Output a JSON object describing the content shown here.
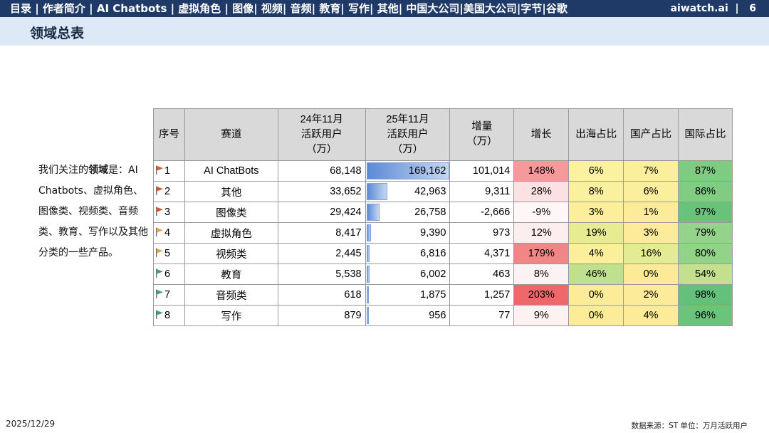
{
  "header": {
    "nav": [
      "目录",
      "作者简介",
      "AI Chatbots",
      "虚拟角色",
      "图像",
      "视频",
      "音频",
      "教育",
      "写作",
      "其他",
      "中国大公司",
      "美国大公司",
      "字节",
      "谷歌"
    ],
    "nav_text": "目录 | 作者简介 | AI Chatbots | 虚拟角色 | 图像| 视频| 音频| 教育| 写作| 其他| 中国大公司|美国大公司|字节|谷歌",
    "site": "aiwatch.ai",
    "page_number": "6"
  },
  "page_title": "领域总表",
  "intro": {
    "prefix": "我们关注的",
    "bold": "领域",
    "suffix": "是：AI Chatbots、虚拟角色、 图像类、视频类、音频类、教育、写作以及其他分类的一些产品。"
  },
  "table": {
    "headers": [
      "序号",
      "赛道",
      "24年11月\n活跃用户\n（万）",
      "25年11月\n活跃用户\n（万）",
      "增量\n（万）",
      "增长",
      "出海占比",
      "国产占比",
      "国际占比"
    ],
    "rows": [
      {
        "no": "1",
        "flag": "#d9502e",
        "track": "AI ChatBots",
        "nov24": "68,148",
        "nov25": "169,162",
        "nov25_num": 169162,
        "delta": "101,014",
        "growth": "148%",
        "growth_color": "#f49a9a",
        "overseas": "6%",
        "overseas_color": "#fbf1a0",
        "domestic": "7%",
        "domestic_color": "#fbee9c",
        "intl": "87%",
        "intl_color": "#7ecb82"
      },
      {
        "no": "2",
        "flag": "#d9502e",
        "track": "其他",
        "nov24": "33,652",
        "nov25": "42,963",
        "nov25_num": 42963,
        "delta": "9,311",
        "growth": "28%",
        "growth_color": "#fbe1e2",
        "overseas": "8%",
        "overseas_color": "#fbf0a0",
        "domestic": "6%",
        "domestic_color": "#fbef9d",
        "intl": "86%",
        "intl_color": "#80cc83"
      },
      {
        "no": "3",
        "flag": "#d9502e",
        "track": "图像类",
        "nov24": "29,424",
        "nov25": "26,758",
        "nov25_num": 26758,
        "delta": "-2,666",
        "growth": "-9%",
        "growth_color": "#fdf7f8",
        "overseas": "3%",
        "overseas_color": "#fcee9b",
        "domestic": "1%",
        "domestic_color": "#fceb98",
        "intl": "97%",
        "intl_color": "#68c27b"
      },
      {
        "no": "4",
        "flag": "#e8a445",
        "track": "虚拟角色",
        "nov24": "8,417",
        "nov25": "9,390",
        "nov25_num": 9390,
        "delta": "973",
        "growth": "12%",
        "growth_color": "#fceeef",
        "overseas": "19%",
        "overseas_color": "#e7ec92",
        "domestic": "3%",
        "domestic_color": "#fcec99",
        "intl": "79%",
        "intl_color": "#94d38a"
      },
      {
        "no": "5",
        "flag": "#e8a445",
        "track": "视频类",
        "nov24": "2,445",
        "nov25": "6,816",
        "nov25_num": 6816,
        "delta": "4,371",
        "growth": "179%",
        "growth_color": "#f28687",
        "overseas": "4%",
        "overseas_color": "#fcef9c",
        "domestic": "16%",
        "domestic_color": "#e3ec95",
        "intl": "80%",
        "intl_color": "#92d289"
      },
      {
        "no": "6",
        "flag": "#3f9f7a",
        "track": "教育",
        "nov24": "5,538",
        "nov25": "6,002",
        "nov25_num": 6002,
        "delta": "463",
        "growth": "8%",
        "growth_color": "#fdf2f3",
        "overseas": "46%",
        "overseas_color": "#bfe08c",
        "domestic": "0%",
        "domestic_color": "#fcea97",
        "intl": "54%",
        "intl_color": "#c2e08e"
      },
      {
        "no": "7",
        "flag": "#3f9f7a",
        "track": "音频类",
        "nov24": "618",
        "nov25": "1,875",
        "nov25_num": 1875,
        "delta": "1,257",
        "growth": "203%",
        "growth_color": "#f0676b",
        "overseas": "0%",
        "overseas_color": "#fcec99",
        "domestic": "2%",
        "domestic_color": "#fcec99",
        "intl": "98%",
        "intl_color": "#64c17b"
      },
      {
        "no": "8",
        "flag": "#3f9f7a",
        "track": "写作",
        "nov24": "879",
        "nov25": "956",
        "nov25_num": 956,
        "delta": "77",
        "growth": "9%",
        "growth_color": "#fdf1f2",
        "overseas": "0%",
        "overseas_color": "#fcec99",
        "domestic": "4%",
        "domestic_color": "#fcec99",
        "intl": "96%",
        "intl_color": "#6ac47c"
      }
    ]
  },
  "footer": {
    "date": "2025/12/29",
    "source": "数据来源：ST  单位：万月活跃用户"
  }
}
